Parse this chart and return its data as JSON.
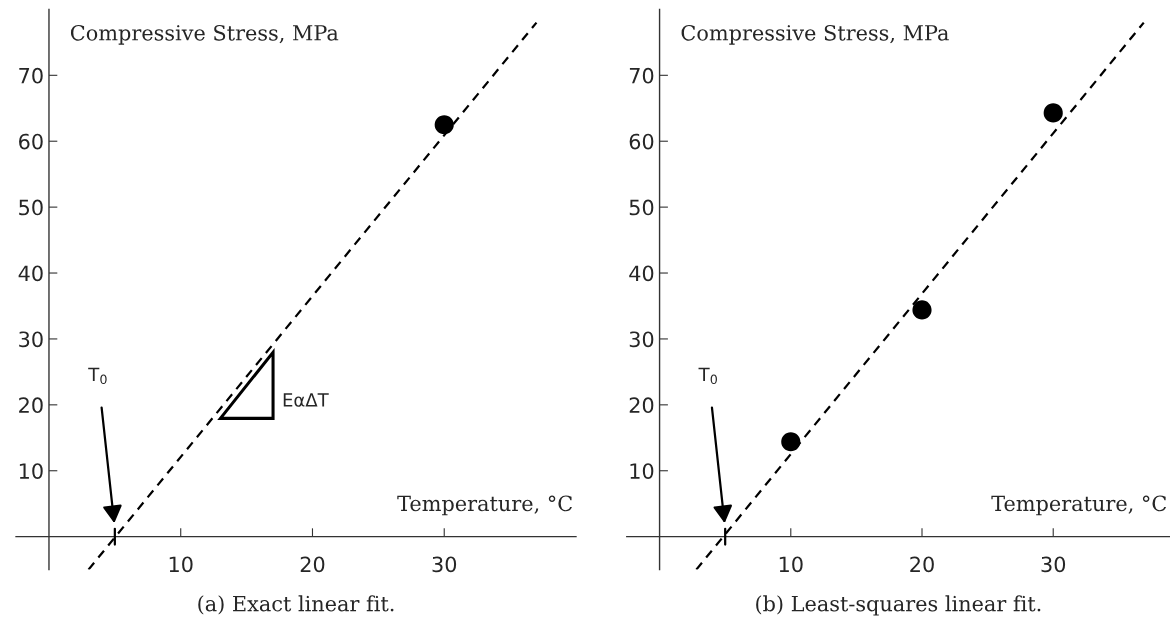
{
  "chart_data": [
    {
      "type": "scatter",
      "title": "(a) Exact linear fit.",
      "xlabel": "Temperature, °C",
      "ylabel": "Compressive Stress, MPa",
      "xlim": [
        -2.5,
        40
      ],
      "ylim": [
        -5,
        80
      ],
      "xticks": [
        10,
        20,
        30
      ],
      "yticks": [
        10,
        20,
        30,
        40,
        50,
        60,
        70
      ],
      "grid": false,
      "series": [
        {
          "x": [
            30
          ],
          "values": [
            62.5
          ],
          "color": "#000000",
          "marker": "circle"
        },
        {
          "type": "line",
          "x": [
            3,
            37
          ],
          "values": [
            -5,
            78
          ],
          "color": "#000000",
          "line_style": "dashed",
          "marker": "none"
        },
        {
          "type": "line",
          "x": [
            5,
            5
          ],
          "values": [
            -1.2,
            1.2
          ],
          "color": "#000000",
          "line_style": "solid",
          "marker": "none"
        }
      ],
      "annotations": [
        {
          "text": "T$_{0}$",
          "x": 5,
          "y": 1.2
        },
        "EαΔT"
      ]
    },
    {
      "type": "scatter",
      "title": "(b) Least-squares linear fit.",
      "xlabel": "Temperature, °C",
      "ylabel": "Compressive Stress, MPa",
      "xlim": [
        -2.5,
        38.9
      ],
      "ylim": [
        -5,
        80
      ],
      "xticks": [
        10,
        20,
        30
      ],
      "yticks": [
        10,
        20,
        30,
        40,
        50,
        60,
        70
      ],
      "grid": false,
      "series": [
        {
          "x": [
            10,
            20,
            30
          ],
          "values": [
            14.4,
            34.4,
            64.3
          ],
          "color": "#000000",
          "marker": "circle"
        },
        {
          "type": "line",
          "x": [
            2.8,
            36.9
          ],
          "values": [
            -5,
            78
          ],
          "color": "#000000",
          "line_style": "dashed",
          "marker": "none"
        },
        {
          "type": "line",
          "x": [
            5,
            5
          ],
          "values": [
            -1.2,
            1.2
          ],
          "color": "#000000",
          "line_style": "solid",
          "marker": "none"
        }
      ],
      "annotations": [
        {
          "text": "T$_{0}$",
          "x": 5,
          "y": 1.2
        }
      ]
    }
  ]
}
